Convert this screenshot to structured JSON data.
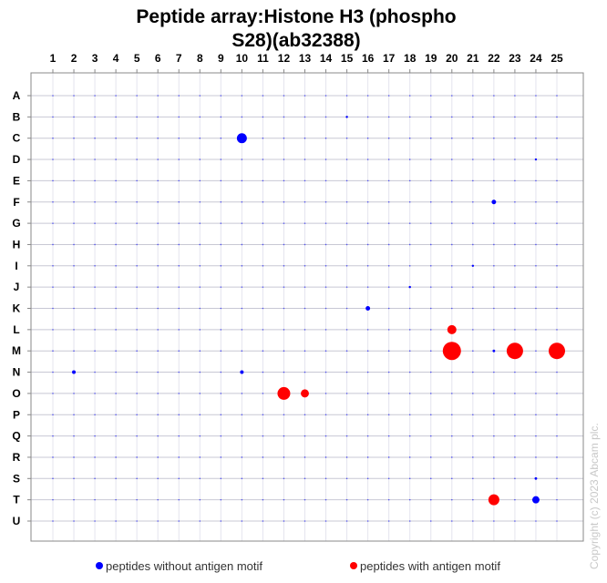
{
  "chart_data": {
    "type": "scatter",
    "title_lines": [
      "Peptide array:Histone  H3 (phospho",
      "S28)(ab32388)"
    ],
    "columns": [
      "1",
      "2",
      "3",
      "4",
      "5",
      "6",
      "7",
      "8",
      "9",
      "10",
      "11",
      "12",
      "13",
      "14",
      "15",
      "16",
      "17",
      "18",
      "19",
      "20",
      "21",
      "22",
      "23",
      "24",
      "25"
    ],
    "rows": [
      "A",
      "B",
      "C",
      "D",
      "E",
      "F",
      "G",
      "H",
      "I",
      "J",
      "K",
      "L",
      "M",
      "N",
      "O",
      "P",
      "Q",
      "R",
      "S",
      "T",
      "U"
    ],
    "grid": true,
    "size_encodes": "signal",
    "baseline_signal": 0.6,
    "series": [
      {
        "name": "peptides without antigen motif",
        "color": "#0000ff",
        "points": [
          {
            "row": "C",
            "col": "10",
            "signal": 30
          },
          {
            "row": "F",
            "col": "22",
            "signal": 6
          },
          {
            "row": "K",
            "col": "16",
            "signal": 6
          },
          {
            "row": "T",
            "col": "24",
            "signal": 16
          },
          {
            "row": "N",
            "col": "2",
            "signal": 4
          },
          {
            "row": "N",
            "col": "10",
            "signal": 4
          },
          {
            "row": "S",
            "col": "24",
            "signal": 2
          },
          {
            "row": "M",
            "col": "22",
            "signal": 2
          },
          {
            "row": "B",
            "col": "15",
            "signal": 1.5
          },
          {
            "row": "D",
            "col": "24",
            "signal": 1.5
          },
          {
            "row": "I",
            "col": "21",
            "signal": 1.5
          },
          {
            "row": "J",
            "col": "18",
            "signal": 1.5
          }
        ]
      },
      {
        "name": "peptides with antigen motif",
        "color": "#ff0000",
        "points": [
          {
            "row": "M",
            "col": "20",
            "signal": 100
          },
          {
            "row": "M",
            "col": "23",
            "signal": 81
          },
          {
            "row": "M",
            "col": "25",
            "signal": 81
          },
          {
            "row": "O",
            "col": "12",
            "signal": 49
          },
          {
            "row": "T",
            "col": "22",
            "signal": 36
          },
          {
            "row": "L",
            "col": "20",
            "signal": 25
          },
          {
            "row": "O",
            "col": "13",
            "signal": 20
          }
        ]
      }
    ],
    "legend_placement": "bottom"
  },
  "copyright": "Copyright (c) 2023 Abcam plc."
}
